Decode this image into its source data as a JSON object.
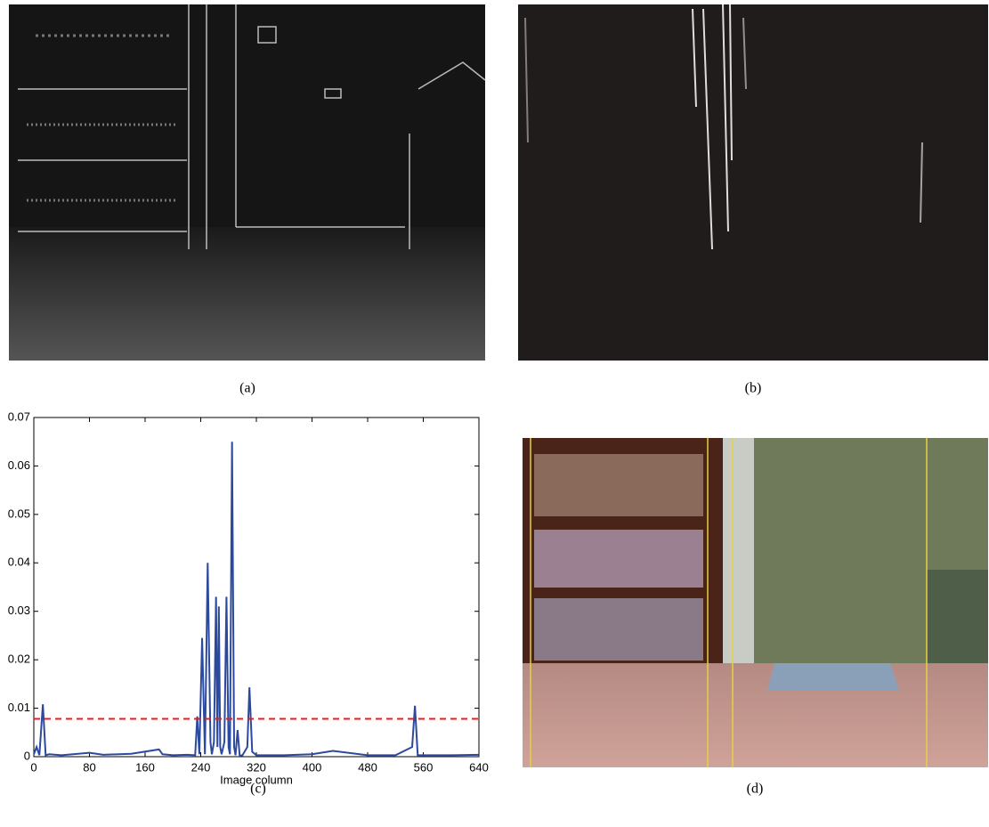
{
  "panels": [
    {
      "caption": "(a)"
    },
    {
      "caption": "(b)"
    },
    {
      "caption": "(c)"
    },
    {
      "caption": "(d)"
    }
  ],
  "chart_data": {
    "type": "line",
    "x_label": "Image column",
    "x": [
      0,
      4,
      8,
      13,
      17,
      22,
      40,
      80,
      100,
      140,
      180,
      185,
      200,
      220,
      232,
      235,
      238,
      242,
      246,
      250,
      254,
      256,
      259,
      262,
      264,
      266,
      268,
      270,
      274,
      277,
      280,
      282,
      285,
      288,
      290,
      293,
      296,
      300,
      307,
      310,
      314,
      320,
      360,
      400,
      430,
      480,
      520,
      544,
      548,
      552,
      560,
      600,
      640
    ],
    "series": [
      {
        "color": "#2b4a9e",
        "values": [
          0.0005,
          0.002,
          0.0003,
          0.0108,
          0.0003,
          0.0005,
          0.0003,
          0.0008,
          0.0004,
          0.0006,
          0.0015,
          0.0005,
          0.0003,
          0.0004,
          0.0003,
          0.0083,
          0.0005,
          0.0245,
          0.0005,
          0.04,
          0.003,
          0.0005,
          0.003,
          0.033,
          0.002,
          0.031,
          0.002,
          0.0005,
          0.003,
          0.033,
          0.002,
          0.0005,
          0.065,
          0.002,
          0.0003,
          0.0055,
          0.0002,
          0.0003,
          0.002,
          0.0143,
          0.001,
          0.0003,
          0.0003,
          0.0005,
          0.0012,
          0.0003,
          0.0003,
          0.002,
          0.0105,
          0.0003,
          0.0003,
          0.0003,
          0.0004
        ]
      }
    ],
    "threshold": 0.0078,
    "threshold_color": "#e02020",
    "xlim": [
      0,
      640
    ],
    "xticks": [
      0,
      80,
      160,
      240,
      320,
      400,
      480,
      560,
      640
    ],
    "ylim": [
      0,
      0.07
    ],
    "yticks": [
      0,
      0.01,
      0.02,
      0.03,
      0.04,
      0.05,
      0.06,
      0.07
    ]
  }
}
